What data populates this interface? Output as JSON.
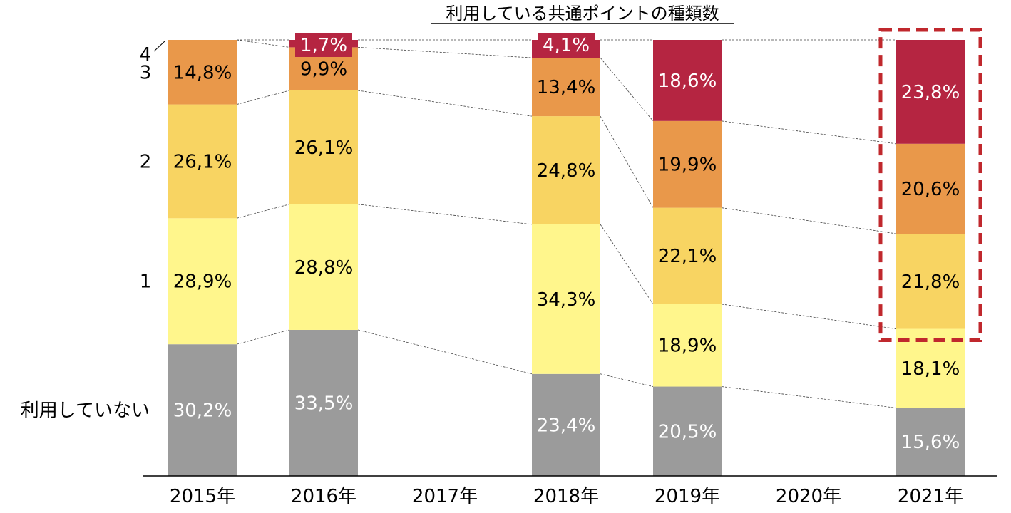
{
  "chart_data": {
    "type": "bar",
    "stacked": true,
    "percent_stacked": true,
    "title": "利用している共通ポイントの種類数",
    "categories": [
      "2015年",
      "2016年",
      "2017年",
      "2018年",
      "2019年",
      "2020年",
      "2021年"
    ],
    "y_labels": [
      "利用していない",
      "1",
      "2",
      "3",
      "4"
    ],
    "series": [
      {
        "name": "利用していない",
        "color": "#9b9b9b",
        "label_color": "#ffffff",
        "values": [
          30.2,
          33.5,
          null,
          23.4,
          20.5,
          null,
          15.6
        ],
        "labels": [
          "30,2%",
          "33,5%",
          "",
          "23,4%",
          "20,5%",
          "",
          "15,6%"
        ]
      },
      {
        "name": "1",
        "color": "#fff68c",
        "label_color": "#000000",
        "values": [
          28.9,
          28.8,
          null,
          34.3,
          18.9,
          null,
          18.1
        ],
        "labels": [
          "28,9%",
          "28,8%",
          "",
          "34,3%",
          "18,9%",
          "",
          "18,1%"
        ]
      },
      {
        "name": "2",
        "color": "#f8d462",
        "label_color": "#000000",
        "values": [
          26.1,
          26.1,
          null,
          24.8,
          22.1,
          null,
          21.8
        ],
        "labels": [
          "26,1%",
          "26,1%",
          "",
          "24,8%",
          "22,1%",
          "",
          "21,8%"
        ]
      },
      {
        "name": "3",
        "color": "#e9984a",
        "label_color": "#000000",
        "values": [
          14.8,
          9.9,
          null,
          13.4,
          19.9,
          null,
          20.6
        ],
        "labels": [
          "14,8%",
          "9,9%",
          "",
          "13,4%",
          "19,9%",
          "",
          "20,6%"
        ]
      },
      {
        "name": "4",
        "color": "#b52541",
        "label_color": "#ffffff",
        "values": [
          0,
          1.7,
          null,
          4.1,
          18.6,
          null,
          23.8
        ],
        "labels": [
          "",
          "1,7%",
          "",
          "4,1%",
          "18,6%",
          "",
          "23,8%"
        ]
      }
    ],
    "highlight": {
      "category": "2021年",
      "series": [
        "2",
        "3",
        "4"
      ],
      "color": "#c0282d",
      "style": "dashed"
    },
    "ylim": [
      0,
      100
    ]
  }
}
